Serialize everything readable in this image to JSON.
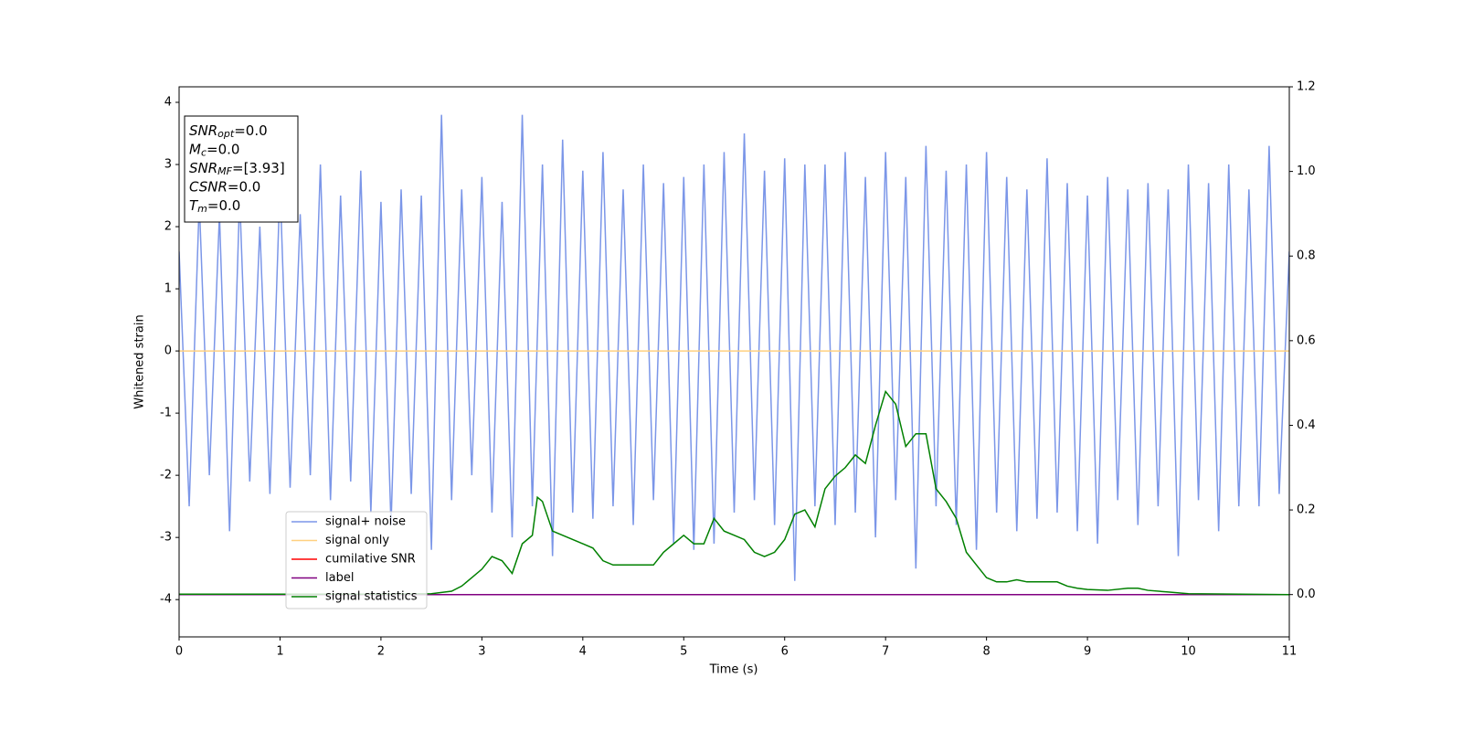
{
  "chart_data": {
    "type": "line",
    "xlabel": "Time (s)",
    "ylabel": "Whitened strain",
    "xlim": [
      0,
      11
    ],
    "xticks": [
      0,
      1,
      2,
      3,
      4,
      5,
      6,
      7,
      8,
      9,
      10,
      11
    ],
    "ylim": [
      -4.6,
      4.25
    ],
    "yticks": [
      -4,
      -3,
      -2,
      -1,
      0,
      1,
      2,
      3,
      4
    ],
    "y2lim": [
      -0.1,
      1.2
    ],
    "y2ticks": [
      {
        "value": 0,
        "label": "0.0"
      },
      {
        "value": 0.2,
        "label": "0.2"
      },
      {
        "value": 0.4,
        "label": "0.4"
      },
      {
        "value": 0.6,
        "label": "0.6"
      },
      {
        "value": 0.8,
        "label": "0.8"
      },
      {
        "value": 1.0,
        "label": "1.0"
      },
      {
        "value": 1.2,
        "label": "1.2"
      }
    ],
    "legend": "lower left",
    "annotation": [
      {
        "symbol": "SNR",
        "sub": "opt",
        "text": "=0.0"
      },
      {
        "symbol": "M",
        "sub": "c",
        "text": "=0.0"
      },
      {
        "symbol": "SNR",
        "sub": "MF",
        "text": "=[3.93]"
      },
      {
        "symbol": "CSNR",
        "sub": "",
        "text": "=0.0"
      },
      {
        "symbol": "T",
        "sub": "m",
        "text": "=0.0"
      }
    ],
    "series": [
      {
        "name": "signal+ noise",
        "color": "#7b96e8",
        "x": [
          0,
          0.1,
          0.2,
          0.3,
          0.4,
          0.5,
          0.6,
          0.7,
          0.8,
          0.9,
          1,
          1.1,
          1.2,
          1.3,
          1.4,
          1.5,
          1.6,
          1.7,
          1.8,
          1.9,
          2,
          2.1,
          2.2,
          2.3,
          2.4,
          2.5,
          2.6,
          2.7,
          2.8,
          2.9,
          3,
          3.1,
          3.2,
          3.3,
          3.4,
          3.5,
          3.6,
          3.7,
          3.8,
          3.9,
          4,
          4.1,
          4.2,
          4.3,
          4.4,
          4.5,
          4.6,
          4.7,
          4.8,
          4.9,
          5,
          5.1,
          5.2,
          5.3,
          5.4,
          5.5,
          5.6,
          5.7,
          5.8,
          5.9,
          6,
          6.1,
          6.2,
          6.3,
          6.4,
          6.5,
          6.6,
          6.7,
          6.8,
          6.9,
          7,
          7.1,
          7.2,
          7.3,
          7.4,
          7.5,
          7.6,
          7.7,
          7.8,
          7.9,
          8,
          8.1,
          8.2,
          8.3,
          8.4,
          8.5,
          8.6,
          8.7,
          8.8,
          8.9,
          9,
          9.1,
          9.2,
          9.3,
          9.4,
          9.5,
          9.6,
          9.7,
          9.8,
          9.9,
          10,
          10.1,
          10.2,
          10.3,
          10.4,
          10.5,
          10.6,
          10.7,
          10.8,
          10.9,
          11
        ],
        "values": [
          1.6,
          -2.5,
          2.4,
          -2.0,
          2.2,
          -2.9,
          2.5,
          -2.1,
          2.0,
          -2.3,
          2.7,
          -2.2,
          2.2,
          -2.0,
          3.0,
          -2.4,
          2.5,
          -2.1,
          2.9,
          -2.6,
          2.4,
          -2.8,
          2.6,
          -2.3,
          2.5,
          -3.2,
          3.8,
          -2.4,
          2.6,
          -2.0,
          2.8,
          -2.6,
          2.4,
          -3.0,
          3.8,
          -2.5,
          3.0,
          -3.3,
          3.4,
          -2.6,
          2.9,
          -2.7,
          3.2,
          -2.5,
          2.6,
          -2.8,
          3.0,
          -2.4,
          2.7,
          -3.1,
          2.8,
          -3.2,
          3.0,
          -3.1,
          3.2,
          -2.6,
          3.5,
          -2.4,
          2.9,
          -2.8,
          3.1,
          -3.7,
          3.0,
          -2.5,
          3.0,
          -2.8,
          3.2,
          -2.6,
          2.8,
          -3.0,
          3.2,
          -2.4,
          2.8,
          -3.5,
          3.3,
          -2.5,
          2.9,
          -2.8,
          3.0,
          -3.2,
          3.2,
          -2.6,
          2.8,
          -2.9,
          2.6,
          -2.7,
          3.1,
          -2.6,
          2.7,
          -2.9,
          2.5,
          -3.1,
          2.8,
          -2.4,
          2.6,
          -2.8,
          2.7,
          -2.5,
          2.6,
          -3.3,
          3.0,
          -2.4,
          2.7,
          -2.9,
          3.0,
          -2.5,
          2.6,
          -2.5,
          3.3,
          -2.3,
          1.6
        ]
      },
      {
        "name": "signal only",
        "color": "#ffd080",
        "x": [
          0,
          11
        ],
        "values": [
          0,
          0
        ]
      },
      {
        "name": "cumilative SNR",
        "color": "#ff0000",
        "axis": "y2",
        "x": [
          0,
          11
        ],
        "values": [
          0,
          0
        ]
      },
      {
        "name": "label",
        "color": "#800080",
        "axis": "y2",
        "x": [
          0,
          11
        ],
        "values": [
          0,
          0
        ]
      },
      {
        "name": "signal statistics",
        "color": "#008000",
        "axis": "y2",
        "x": [
          0,
          0.5,
          1,
          1.5,
          2,
          2.5,
          2.6,
          2.7,
          2.8,
          2.9,
          3.0,
          3.1,
          3.2,
          3.3,
          3.4,
          3.5,
          3.55,
          3.6,
          3.7,
          3.8,
          3.9,
          4.0,
          4.1,
          4.2,
          4.3,
          4.4,
          4.5,
          4.6,
          4.7,
          4.8,
          4.9,
          5.0,
          5.1,
          5.2,
          5.3,
          5.4,
          5.5,
          5.6,
          5.7,
          5.8,
          5.9,
          6.0,
          6.1,
          6.2,
          6.3,
          6.4,
          6.5,
          6.6,
          6.7,
          6.8,
          6.9,
          7.0,
          7.1,
          7.2,
          7.3,
          7.4,
          7.5,
          7.6,
          7.7,
          7.8,
          7.9,
          8.0,
          8.1,
          8.2,
          8.3,
          8.4,
          8.5,
          8.6,
          8.7,
          8.8,
          8.9,
          9.0,
          9.2,
          9.4,
          9.5,
          9.6,
          9.8,
          10,
          11
        ],
        "values": [
          0.001,
          0.001,
          0.001,
          0.001,
          0.001,
          0.002,
          0.005,
          0.008,
          0.02,
          0.04,
          0.06,
          0.09,
          0.08,
          0.05,
          0.12,
          0.14,
          0.23,
          0.22,
          0.15,
          0.14,
          0.13,
          0.12,
          0.11,
          0.08,
          0.07,
          0.07,
          0.07,
          0.07,
          0.07,
          0.1,
          0.12,
          0.14,
          0.12,
          0.12,
          0.18,
          0.15,
          0.14,
          0.13,
          0.1,
          0.09,
          0.1,
          0.13,
          0.19,
          0.2,
          0.16,
          0.25,
          0.28,
          0.3,
          0.33,
          0.31,
          0.4,
          0.48,
          0.45,
          0.35,
          0.38,
          0.38,
          0.25,
          0.22,
          0.18,
          0.1,
          0.07,
          0.04,
          0.03,
          0.03,
          0.035,
          0.03,
          0.03,
          0.03,
          0.03,
          0.02,
          0.015,
          0.012,
          0.01,
          0.015,
          0.015,
          0.01,
          0.006,
          0.002,
          0
        ]
      }
    ]
  }
}
